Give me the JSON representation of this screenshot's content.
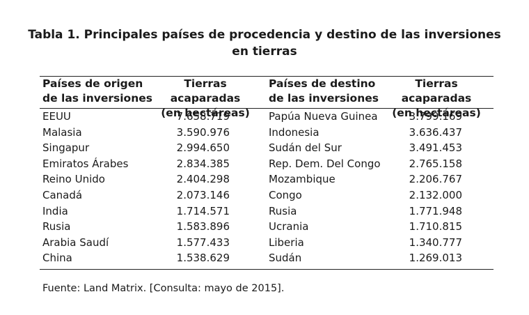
{
  "title": {
    "line1": "Tabla 1. Principales países de procedencia y destino de las inversiones",
    "line2": "en tierras"
  },
  "headers": {
    "origin": [
      "Países de origen",
      "de las inversiones"
    ],
    "origin_land": [
      "Tierras acaparadas",
      "(en hectáreas)"
    ],
    "destination": [
      "Países de destino",
      "de las inversiones"
    ],
    "destination_land": [
      "Tierras acaparadas",
      "(en hectáreas)"
    ]
  },
  "rows": [
    {
      "origin": "EEUU",
      "origin_land": "7.658.719",
      "destination": "Papúa Nueva Guinea",
      "destination_land": "3.799.169"
    },
    {
      "origin": "Malasia",
      "origin_land": "3.590.976",
      "destination": "Indonesia",
      "destination_land": "3.636.437"
    },
    {
      "origin": "Singapur",
      "origin_land": "2.994.650",
      "destination": "Sudán del Sur",
      "destination_land": "3.491.453"
    },
    {
      "origin": "Emiratos Árabes",
      "origin_land": "2.834.385",
      "destination": "Rep. Dem. Del Congo",
      "destination_land": "2.765.158"
    },
    {
      "origin": "Reino Unido",
      "origin_land": "2.404.298",
      "destination": "Mozambique",
      "destination_land": "2.206.767"
    },
    {
      "origin": "Canadá",
      "origin_land": "2.073.146",
      "destination": "Congo",
      "destination_land": "2.132.000"
    },
    {
      "origin": "India",
      "origin_land": "1.714.571",
      "destination": "Rusia",
      "destination_land": "1.771.948"
    },
    {
      "origin": "Rusia",
      "origin_land": "1.583.896",
      "destination": "Ucrania",
      "destination_land": "1.710.815"
    },
    {
      "origin": "Arabia Saudí",
      "origin_land": "1.577.433",
      "destination": "Liberia",
      "destination_land": "1.340.777"
    },
    {
      "origin": "China",
      "origin_land": "1.538.629",
      "destination": "Sudán",
      "destination_land": "1.269.013"
    }
  ],
  "source": "Fuente: Land Matrix. [Consulta: mayo de 2015]."
}
